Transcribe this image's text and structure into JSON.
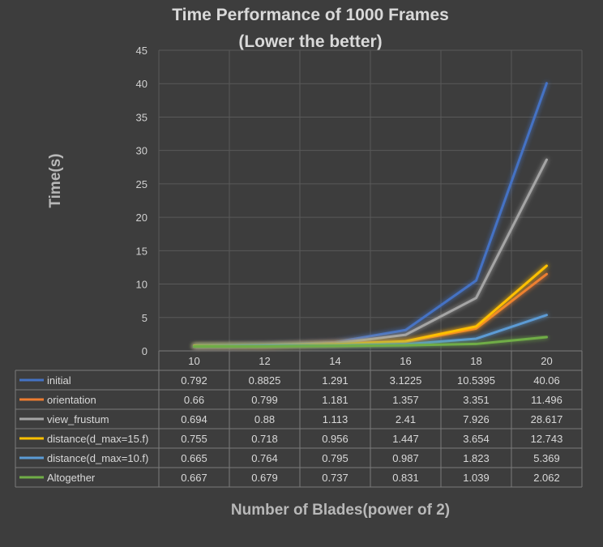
{
  "chart_data": {
    "type": "line",
    "title": "Time Performance of 1000 Frames",
    "subtitle": "(Lower the better)",
    "xlabel": "Number of Blades(power of 2)",
    "ylabel": "Time(s)",
    "categories": [
      "10",
      "12",
      "14",
      "16",
      "18",
      "20"
    ],
    "ylim": [
      0,
      45
    ],
    "yticks": [
      0,
      5,
      10,
      15,
      20,
      25,
      30,
      35,
      40,
      45
    ],
    "grid": true,
    "legend": "data-table",
    "series": [
      {
        "name": "initial",
        "color": "#4472c4",
        "values": [
          0.792,
          0.8825,
          1.291,
          3.1225,
          10.5395,
          40.06
        ],
        "labels": [
          "0.792",
          "0.8825",
          "1.291",
          "3.1225",
          "10.5395",
          "40.06"
        ]
      },
      {
        "name": "orientation",
        "color": "#ed7d31",
        "values": [
          0.66,
          0.799,
          1.181,
          1.357,
          3.351,
          11.496
        ],
        "labels": [
          "0.66",
          "0.799",
          "1.181",
          "1.357",
          "3.351",
          "11.496"
        ]
      },
      {
        "name": "view_frustum",
        "color": "#a5a5a5",
        "values": [
          0.694,
          0.88,
          1.113,
          2.41,
          7.926,
          28.617
        ],
        "labels": [
          "0.694",
          "0.88",
          "1.113",
          "2.41",
          "7.926",
          "28.617"
        ]
      },
      {
        "name": "distance(d_max=15.f)",
        "color": "#ffc000",
        "values": [
          0.755,
          0.718,
          0.956,
          1.447,
          3.654,
          12.743
        ],
        "labels": [
          "0.755",
          "0.718",
          "0.956",
          "1.447",
          "3.654",
          "12.743"
        ]
      },
      {
        "name": "distance(d_max=10.f)",
        "color": "#5b9bd5",
        "values": [
          0.665,
          0.764,
          0.795,
          0.987,
          1.823,
          5.369
        ],
        "labels": [
          "0.665",
          "0.764",
          "0.795",
          "0.987",
          "1.823",
          "5.369"
        ]
      },
      {
        "name": "Altogether",
        "color": "#70ad47",
        "values": [
          0.667,
          0.679,
          0.737,
          0.831,
          1.039,
          2.062
        ],
        "labels": [
          "0.667",
          "0.679",
          "0.737",
          "0.831",
          "1.039",
          "2.062"
        ]
      }
    ]
  }
}
